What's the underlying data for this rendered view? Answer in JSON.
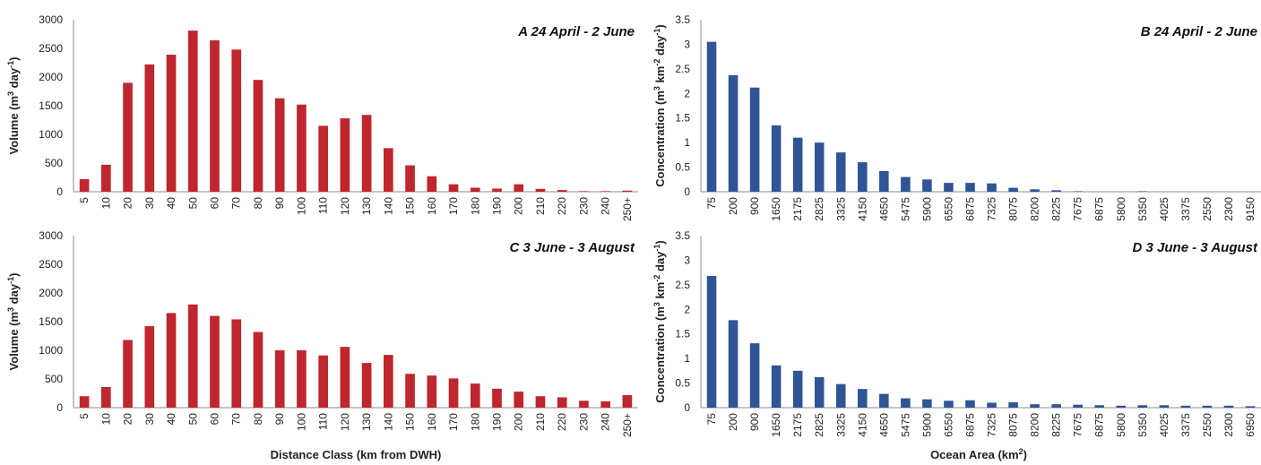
{
  "chart_data": [
    {
      "id": "A",
      "type": "bar",
      "title": "A 24 April - 2 June",
      "ylabel": "Volume (m³ day⁻¹)",
      "ylabel_parts": [
        "Volume (m",
        "3",
        " day",
        "-1",
        ")"
      ],
      "xlabel": "",
      "ylim": [
        0,
        3000
      ],
      "yticks": [
        0,
        500,
        1000,
        1500,
        2000,
        2500,
        3000
      ],
      "bar_color": "#c0262d",
      "categories": [
        "5",
        "10",
        "20",
        "30",
        "40",
        "50",
        "60",
        "70",
        "80",
        "90",
        "100",
        "110",
        "120",
        "130",
        "140",
        "150",
        "160",
        "170",
        "180",
        "190",
        "200",
        "210",
        "220",
        "230",
        "240",
        "250+"
      ],
      "values": [
        220,
        470,
        1900,
        2220,
        2390,
        2810,
        2640,
        2480,
        1950,
        1630,
        1520,
        1150,
        1280,
        1340,
        760,
        460,
        270,
        130,
        70,
        55,
        130,
        50,
        30,
        10,
        10,
        20
      ]
    },
    {
      "id": "B",
      "type": "bar",
      "title": "B 24 April - 2 June",
      "ylabel": "Concentration (m³ km⁻² day⁻¹)",
      "ylabel_parts": [
        "Concentration (m",
        "3",
        " km",
        "-2",
        " day",
        "-1",
        ")"
      ],
      "xlabel": "",
      "ylim": [
        0,
        3.5
      ],
      "yticks": [
        "0",
        "0.5",
        "1",
        "1.5",
        "2",
        "2.5",
        "3",
        "3.5"
      ],
      "bar_color": "#2f5597",
      "categories": [
        "75",
        "200",
        "900",
        "1650",
        "2175",
        "2825",
        "3325",
        "4150",
        "4650",
        "5475",
        "5900",
        "6550",
        "6875",
        "7325",
        "8075",
        "8200",
        "8225",
        "7675",
        "6875",
        "5800",
        "5350",
        "4025",
        "3375",
        "2550",
        "2300",
        "9150"
      ],
      "values": [
        3.05,
        2.37,
        2.12,
        1.35,
        1.1,
        1.0,
        0.8,
        0.6,
        0.42,
        0.3,
        0.25,
        0.18,
        0.18,
        0.17,
        0.08,
        0.05,
        0.03,
        0.01,
        0.0,
        0.0,
        0.01,
        0.0,
        0.0,
        0.0,
        0.0,
        0.0
      ]
    },
    {
      "id": "C",
      "type": "bar",
      "title": "C 3 June - 3 August",
      "ylabel": "Volume (m³ day⁻¹)",
      "ylabel_parts": [
        "Volume (m",
        "3",
        " day",
        "-1",
        ")"
      ],
      "xlabel": "Distance Class (km from DWH)",
      "ylim": [
        0,
        3000
      ],
      "yticks": [
        0,
        500,
        1000,
        1500,
        2000,
        2500,
        3000
      ],
      "bar_color": "#c0262d",
      "categories": [
        "5",
        "10",
        "20",
        "30",
        "40",
        "50",
        "60",
        "70",
        "80",
        "90",
        "100",
        "110",
        "120",
        "130",
        "140",
        "150",
        "160",
        "170",
        "180",
        "190",
        "200",
        "210",
        "220",
        "230",
        "240",
        "250+"
      ],
      "values": [
        200,
        360,
        1180,
        1420,
        1650,
        1800,
        1600,
        1540,
        1320,
        1000,
        1000,
        910,
        1060,
        780,
        920,
        590,
        560,
        510,
        420,
        330,
        280,
        200,
        180,
        120,
        110,
        220
      ]
    },
    {
      "id": "D",
      "type": "bar",
      "title": "D 3 June - 3 August",
      "ylabel": "Concentration (m³ km⁻² day⁻¹)",
      "ylabel_parts": [
        "Concentration (m",
        "3",
        " km",
        "-2",
        " day",
        "-1",
        ")"
      ],
      "xlabel": "Ocean Area (km²)",
      "xlabel_parts": [
        "Ocean Area (km",
        "2",
        ")"
      ],
      "ylim": [
        0,
        3.5
      ],
      "yticks": [
        "0",
        "0.5",
        "1",
        "1.5",
        "2",
        "2.5",
        "3",
        "3.5"
      ],
      "bar_color": "#2f5597",
      "categories": [
        "75",
        "200",
        "900",
        "1650",
        "2175",
        "2825",
        "3325",
        "4150",
        "4650",
        "5475",
        "5900",
        "6550",
        "6875",
        "7325",
        "8075",
        "8200",
        "8225",
        "7675",
        "6875",
        "5800",
        "5350",
        "4025",
        "3375",
        "2550",
        "2300",
        "6950"
      ],
      "values": [
        2.68,
        1.78,
        1.31,
        0.86,
        0.75,
        0.62,
        0.48,
        0.38,
        0.28,
        0.19,
        0.17,
        0.14,
        0.15,
        0.1,
        0.11,
        0.07,
        0.07,
        0.06,
        0.05,
        0.04,
        0.05,
        0.05,
        0.04,
        0.04,
        0.04,
        0.03
      ]
    }
  ]
}
